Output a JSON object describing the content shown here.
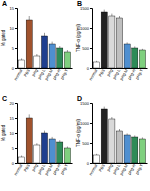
{
  "chart_data": [
    {
      "type": "bar",
      "title": "A",
      "y_label": "% gated",
      "categories": [
        "normal",
        "PBS",
        "pHg",
        "pHg-L",
        "pHg-M",
        "pHg-H",
        "pHg-T"
      ],
      "values": [
        2,
        12,
        3,
        8,
        6,
        5,
        4
      ],
      "errors": [
        0.4,
        1,
        0.5,
        0.8,
        0.6,
        0.5,
        0.5
      ],
      "colors": [
        "#ffffff",
        "#a0522d",
        "#ffffff",
        "#1f3f8f",
        "#4f8fd0",
        "#2e8b57",
        "#7fd07f"
      ],
      "ylim": [
        0,
        15
      ],
      "yticks": [
        0,
        5,
        10,
        15
      ]
    },
    {
      "type": "bar",
      "title": "B",
      "y_label": "TNF-α (pg/ml)",
      "categories": [
        "normal",
        "PBS",
        "pHg",
        "pHg-L",
        "pHg-M",
        "pHg-H",
        "pHg-T"
      ],
      "values": [
        150,
        1400,
        1300,
        1250,
        600,
        500,
        450
      ],
      "errors": [
        30,
        60,
        60,
        50,
        40,
        40,
        30
      ],
      "colors": [
        "#ffffff",
        "#222222",
        "#d9d9d9",
        "#bfbfbf",
        "#4f8fd0",
        "#2e8b57",
        "#7fd07f"
      ],
      "ylim": [
        0,
        1500
      ],
      "yticks": [
        0,
        500,
        1000,
        1500
      ]
    },
    {
      "type": "bar",
      "title": "C",
      "y_label": "% gated",
      "categories": [
        "normal",
        "PBS",
        "pHg",
        "pHg-L",
        "pHg-M",
        "pHg-H",
        "pHg-T"
      ],
      "values": [
        2,
        15,
        6,
        10,
        8,
        7,
        5
      ],
      "errors": [
        0.5,
        1.2,
        0.6,
        0.8,
        0.7,
        0.6,
        0.5
      ],
      "colors": [
        "#ffffff",
        "#a0522d",
        "#ffffff",
        "#1f3f8f",
        "#4f8fd0",
        "#2e8b57",
        "#7fd07f"
      ],
      "ylim": [
        0,
        20
      ],
      "yticks": [
        0,
        5,
        10,
        15,
        20
      ]
    },
    {
      "type": "bar",
      "title": "D",
      "y_label": "TNF-α (pg/ml)",
      "categories": [
        "normal",
        "PBS",
        "pHg",
        "pHg-L",
        "pHg-M",
        "pHg-H",
        "pHg-T"
      ],
      "values": [
        200,
        1350,
        1100,
        800,
        700,
        650,
        600
      ],
      "errors": [
        30,
        60,
        50,
        50,
        40,
        40,
        40
      ],
      "colors": [
        "#ffffff",
        "#222222",
        "#d9d9d9",
        "#bfbfbf",
        "#4f8fd0",
        "#2e8b57",
        "#7fd07f"
      ],
      "ylim": [
        0,
        1500
      ],
      "yticks": [
        0,
        500,
        1000,
        1500
      ]
    }
  ]
}
